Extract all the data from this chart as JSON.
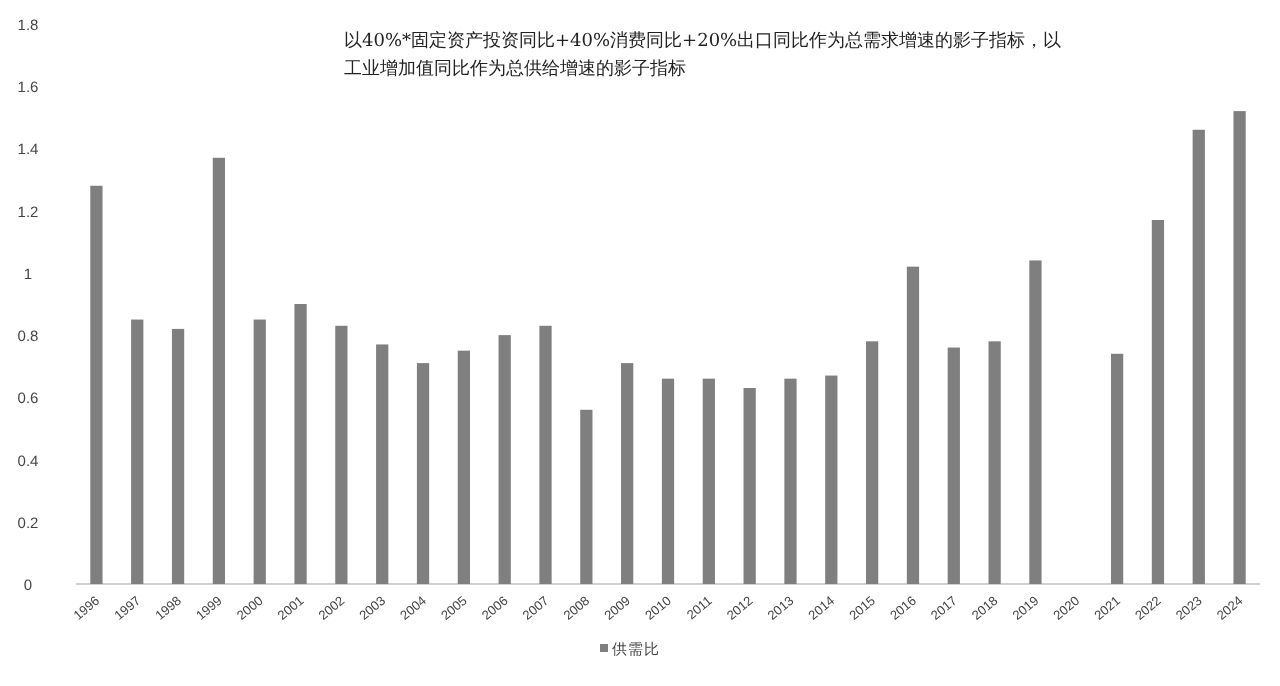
{
  "chart_data": {
    "type": "bar",
    "annotations": [
      "以40%*固定资产投资同比+40%消费同比+20%出口同比作为总需求增速的影子指标，以工业增加值同比作为总供给增速的影子指标"
    ],
    "categories": [
      "1996",
      "1997",
      "1998",
      "1999",
      "2000",
      "2001",
      "2002",
      "2003",
      "2004",
      "2005",
      "2006",
      "2007",
      "2008",
      "2009",
      "2010",
      "2011",
      "2012",
      "2013",
      "2014",
      "2015",
      "2016",
      "2017",
      "2018",
      "2019",
      "2020",
      "2021",
      "2022",
      "2023",
      "2024"
    ],
    "series": [
      {
        "name": "供需比",
        "color": "#7f7f7f",
        "values": [
          1.28,
          0.85,
          0.82,
          1.37,
          0.85,
          0.9,
          0.83,
          0.77,
          0.71,
          0.75,
          0.8,
          0.83,
          0.56,
          0.71,
          0.66,
          0.66,
          0.63,
          0.66,
          0.67,
          0.78,
          1.02,
          0.76,
          0.78,
          1.04,
          null,
          0.74,
          1.17,
          1.46,
          1.52
        ]
      }
    ],
    "ylim": [
      0,
      1.8
    ],
    "yticks": [
      0,
      0.2,
      0.4,
      0.6,
      0.8,
      1,
      1.2,
      1.4,
      1.6,
      1.8
    ],
    "grid": false,
    "legend": "bottom"
  }
}
